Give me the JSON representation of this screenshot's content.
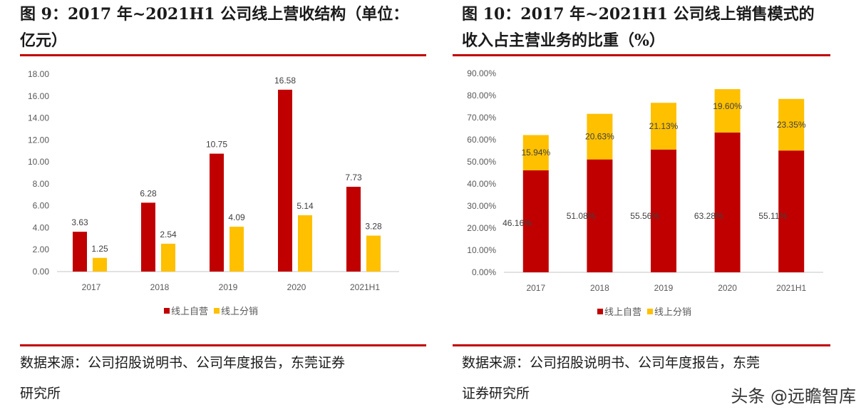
{
  "left": {
    "title_line1": "图 9：2017 年~2021H1 公司线上营收结构（单位：",
    "title_line2": "亿元）",
    "source_line1": "数据来源：公司招股说明书、公司年度报告，东莞证券",
    "source_line2": "研究所"
  },
  "right": {
    "title_line1": "图 10：2017 年~2021H1 公司线上销售模式的",
    "title_line2": "收入占主营业务的比重（%）",
    "source_line1": "数据来源：公司招股说明书、公司年度报告，东莞",
    "source_line2": "证券研究所"
  },
  "watermark": "头条 @远瞻智库",
  "chart_data": [
    {
      "type": "bar",
      "categories": [
        "2017",
        "2018",
        "2019",
        "2020",
        "2021H1"
      ],
      "series": [
        {
          "name": "线上自营",
          "values": [
            3.63,
            6.28,
            10.75,
            16.58,
            7.73
          ],
          "color": "#c00000"
        },
        {
          "name": "线上分销",
          "values": [
            1.25,
            2.54,
            4.09,
            5.14,
            3.28
          ],
          "color": "#ffc000"
        }
      ],
      "ylim": [
        0,
        18
      ],
      "yticks": [
        "0.00",
        "2.00",
        "4.00",
        "6.00",
        "8.00",
        "10.00",
        "12.00",
        "14.00",
        "16.00",
        "18.00"
      ],
      "data_labels": true,
      "grid": false,
      "legend": "bottom"
    },
    {
      "type": "bar",
      "stacked": true,
      "categories": [
        "2017",
        "2018",
        "2019",
        "2020",
        "2021H1"
      ],
      "series": [
        {
          "name": "线上自营",
          "values": [
            46.16,
            51.08,
            55.56,
            63.28,
            55.11
          ],
          "labels": [
            "46.16%",
            "51.08%",
            "55.56%",
            "63.28%",
            "55.11%"
          ],
          "color": "#c00000"
        },
        {
          "name": "线上分销",
          "values": [
            15.94,
            20.63,
            21.13,
            19.6,
            23.35
          ],
          "labels": [
            "15.94%",
            "20.63%",
            "21.13%",
            "19.60%",
            "23.35%"
          ],
          "color": "#ffc000"
        }
      ],
      "ylim": [
        0,
        90
      ],
      "yticks": [
        "0.00%",
        "10.00%",
        "20.00%",
        "30.00%",
        "40.00%",
        "50.00%",
        "60.00%",
        "70.00%",
        "80.00%",
        "90.00%"
      ],
      "data_labels": true,
      "grid": false,
      "legend": "bottom"
    }
  ]
}
